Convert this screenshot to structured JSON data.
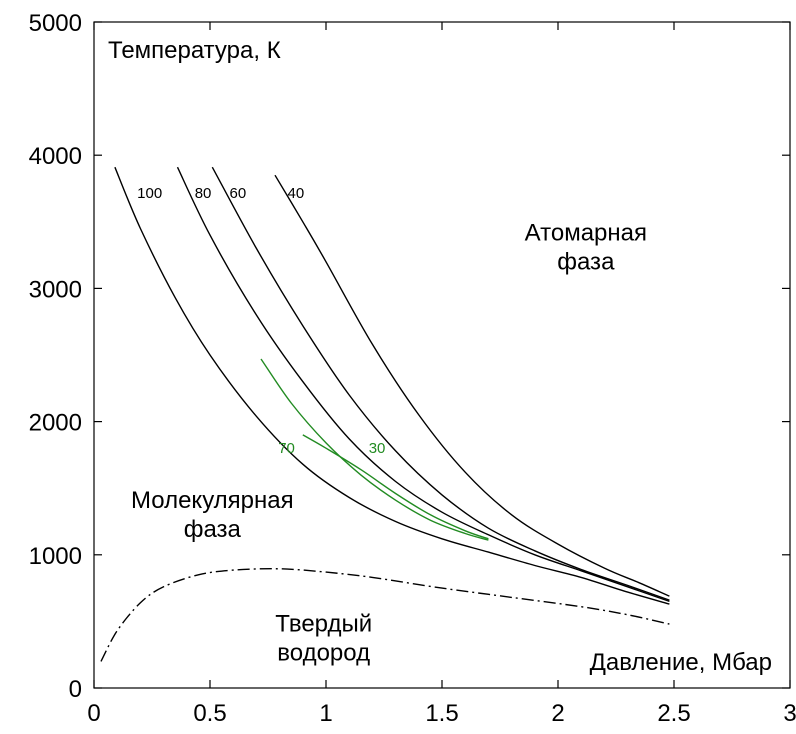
{
  "chart_data": {
    "type": "line",
    "xlim": [
      0,
      3
    ],
    "ylim": [
      0,
      5000
    ],
    "x_ticks": [
      "0",
      "0.5",
      "1",
      "1.5",
      "2",
      "2.5",
      "3"
    ],
    "y_ticks": [
      "0",
      "1000",
      "2000",
      "3000",
      "4000",
      "5000"
    ],
    "ylabel": "Температура, К",
    "xlabel": "Давление, Мбар",
    "grid": false,
    "colors": {
      "black": "#000000",
      "green": "#228b22"
    },
    "region_labels": [
      {
        "lines": [
          "Атомарная",
          "фаза"
        ],
        "x": 2.12,
        "y": 3360
      },
      {
        "lines": [
          "Молекулярная",
          "фаза"
        ],
        "x": 0.51,
        "y": 1350
      },
      {
        "lines": [
          "Твердый",
          "водород"
        ],
        "x": 0.99,
        "y": 425
      }
    ],
    "series": [
      {
        "name": "100",
        "color": "#000000",
        "dash": "solid",
        "label": {
          "text": "100",
          "x": 0.24,
          "y": 3680
        },
        "points": [
          [
            0.09,
            3910
          ],
          [
            0.2,
            3450
          ],
          [
            0.35,
            2930
          ],
          [
            0.5,
            2500
          ],
          [
            0.7,
            2040
          ],
          [
            0.9,
            1680
          ],
          [
            1.1,
            1430
          ],
          [
            1.3,
            1250
          ],
          [
            1.5,
            1120
          ],
          [
            1.7,
            1020
          ],
          [
            1.9,
            920
          ],
          [
            2.1,
            830
          ],
          [
            2.3,
            720
          ],
          [
            2.48,
            630
          ]
        ]
      },
      {
        "name": "80",
        "color": "#000000",
        "dash": "solid",
        "label": {
          "text": "80",
          "x": 0.47,
          "y": 3680
        },
        "points": [
          [
            0.36,
            3910
          ],
          [
            0.5,
            3400
          ],
          [
            0.7,
            2800
          ],
          [
            0.9,
            2300
          ],
          [
            1.1,
            1870
          ],
          [
            1.3,
            1550
          ],
          [
            1.5,
            1320
          ],
          [
            1.7,
            1150
          ],
          [
            1.9,
            1000
          ],
          [
            2.1,
            880
          ],
          [
            2.3,
            760
          ],
          [
            2.48,
            650
          ]
        ]
      },
      {
        "name": "60",
        "color": "#000000",
        "dash": "solid",
        "label": {
          "text": "60",
          "x": 0.62,
          "y": 3680
        },
        "points": [
          [
            0.51,
            3910
          ],
          [
            0.7,
            3300
          ],
          [
            0.9,
            2720
          ],
          [
            1.1,
            2200
          ],
          [
            1.3,
            1780
          ],
          [
            1.5,
            1450
          ],
          [
            1.7,
            1200
          ],
          [
            1.9,
            1030
          ],
          [
            2.1,
            890
          ],
          [
            2.3,
            770
          ],
          [
            2.48,
            660
          ]
        ]
      },
      {
        "name": "40",
        "color": "#000000",
        "dash": "solid",
        "label": {
          "text": "40",
          "x": 0.87,
          "y": 3680
        },
        "points": [
          [
            0.78,
            3850
          ],
          [
            0.9,
            3500
          ],
          [
            1.0,
            3200
          ],
          [
            1.2,
            2580
          ],
          [
            1.4,
            2050
          ],
          [
            1.6,
            1620
          ],
          [
            1.8,
            1300
          ],
          [
            2.0,
            1080
          ],
          [
            2.2,
            900
          ],
          [
            2.35,
            790
          ],
          [
            2.48,
            690
          ]
        ]
      },
      {
        "name": "70",
        "color": "#228b22",
        "dash": "solid",
        "label": {
          "text": "70",
          "x": 0.83,
          "y": 1765
        },
        "points": [
          [
            0.72,
            2470
          ],
          [
            0.85,
            2140
          ],
          [
            1.0,
            1840
          ],
          [
            1.15,
            1600
          ],
          [
            1.3,
            1410
          ],
          [
            1.45,
            1260
          ],
          [
            1.6,
            1160
          ],
          [
            1.7,
            1110
          ]
        ]
      },
      {
        "name": "30",
        "color": "#228b22",
        "dash": "solid",
        "label": {
          "text": "30",
          "x": 1.22,
          "y": 1765
        },
        "points": [
          [
            0.9,
            1900
          ],
          [
            1.0,
            1800
          ],
          [
            1.15,
            1640
          ],
          [
            1.3,
            1460
          ],
          [
            1.45,
            1300
          ],
          [
            1.6,
            1180
          ],
          [
            1.7,
            1120
          ]
        ]
      },
      {
        "name": "solid-boundary",
        "color": "#000000",
        "dash": "dashdot",
        "points": [
          [
            0.03,
            200
          ],
          [
            0.1,
            430
          ],
          [
            0.2,
            640
          ],
          [
            0.3,
            760
          ],
          [
            0.45,
            850
          ],
          [
            0.6,
            885
          ],
          [
            0.8,
            895
          ],
          [
            1.0,
            870
          ],
          [
            1.2,
            830
          ],
          [
            1.5,
            750
          ],
          [
            1.8,
            680
          ],
          [
            2.1,
            610
          ],
          [
            2.3,
            550
          ],
          [
            2.48,
            480
          ]
        ]
      }
    ]
  }
}
